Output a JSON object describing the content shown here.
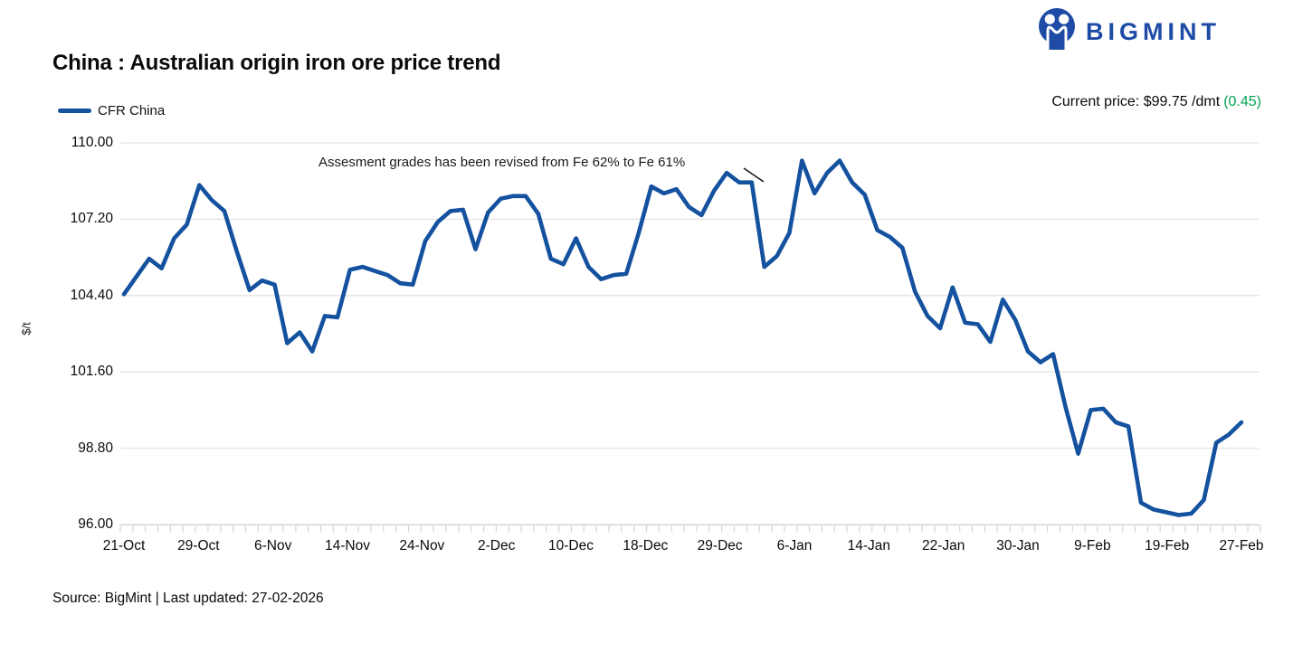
{
  "header": {
    "title": "China : Australian origin iron ore price trend",
    "logo_text": "BIGMINT",
    "current_price_label": "Current price: $99.75 /dmt",
    "current_price_change": "(0.45)"
  },
  "legend": {
    "series_label": "CFR China"
  },
  "footer": {
    "source": "Source: BigMint | Last updated: 27-02-2026"
  },
  "colors": {
    "line": "#14519e",
    "logo_blue": "#1d4ba6",
    "positive_green": "#00a551",
    "gridline": "#e3e3e3",
    "axis_tick": "#d6d6d6",
    "annotation_pointer": "#1a1a1a"
  },
  "chart_data": {
    "type": "line",
    "title": "China : Australian origin iron ore price trend",
    "series_name": "CFR China",
    "xlabel": "",
    "ylabel": "$/t",
    "ylim": [
      96.0,
      110.0
    ],
    "yticks": [
      110.0,
      107.2,
      104.4,
      101.6,
      98.8,
      96.0
    ],
    "ytick_labels": [
      "110.00",
      "107.20",
      "104.40",
      "101.60",
      "98.80",
      "96.00"
    ],
    "grid": "horizontal",
    "legend_position": "top-left",
    "categories": [
      "21-Oct",
      "29-Oct",
      "6-Nov",
      "14-Nov",
      "24-Nov",
      "2-Dec",
      "10-Dec",
      "18-Dec",
      "29-Dec",
      "6-Jan",
      "14-Jan",
      "22-Jan",
      "30-Jan",
      "9-Feb",
      "19-Feb",
      "27-Feb"
    ],
    "values": [
      104.45,
      105.1,
      105.75,
      105.4,
      106.5,
      107.0,
      108.45,
      107.9,
      107.5,
      106.0,
      104.6,
      104.95,
      104.8,
      102.65,
      103.05,
      102.35,
      103.65,
      103.6,
      105.35,
      105.45,
      105.3,
      105.15,
      104.85,
      104.8,
      106.4,
      107.1,
      107.5,
      107.55,
      106.1,
      107.45,
      107.95,
      108.05,
      108.05,
      107.4,
      105.75,
      105.55,
      106.5,
      105.45,
      105.0,
      105.15,
      105.2,
      106.7,
      108.4,
      108.15,
      108.3,
      107.65,
      107.35,
      108.25,
      108.9,
      108.55,
      108.55,
      105.45,
      105.85,
      106.7,
      109.35,
      108.15,
      108.9,
      109.35,
      108.55,
      108.1,
      106.8,
      106.55,
      106.15,
      104.55,
      103.65,
      103.2,
      104.7,
      103.4,
      103.35,
      102.7,
      104.25,
      103.5,
      102.35,
      101.95,
      102.25,
      100.3,
      98.6,
      100.2,
      100.25,
      99.75,
      99.6,
      96.8,
      96.55,
      96.45,
      96.35,
      96.4,
      96.9,
      99.0,
      99.3,
      99.75
    ],
    "annotation": {
      "text": "Assesment grades has been revised from Fe 62% to Fe 61%"
    }
  }
}
